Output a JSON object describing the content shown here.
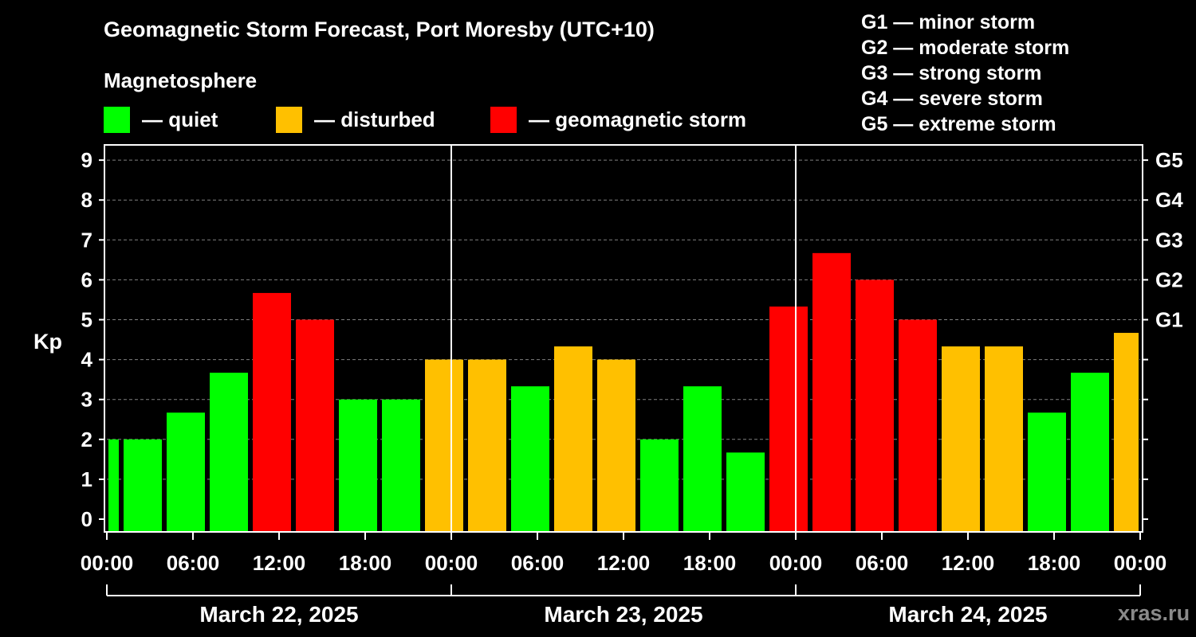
{
  "title": "Geomagnetic Storm Forecast, Port Moresby (UTC+10)",
  "legend": {
    "title": "Magnetosphere",
    "items": [
      {
        "label": "— quiet",
        "color": "#00ff00"
      },
      {
        "label": "— disturbed",
        "color": "#ffc000"
      },
      {
        "label": "— geomagnetic storm",
        "color": "#ff0000"
      }
    ]
  },
  "g_scale": [
    {
      "label": "G1 — minor storm"
    },
    {
      "label": "G2 — moderate storm"
    },
    {
      "label": "G3 — strong storm"
    },
    {
      "label": "G4 — severe storm"
    },
    {
      "label": "G5 — extreme storm"
    }
  ],
  "watermark": "xras.ru",
  "colors": {
    "quiet": "#00ff00",
    "disturbed": "#ffc000",
    "storm": "#ff0000",
    "background": "#000000",
    "axis": "#ffffff"
  },
  "chart_data": {
    "type": "bar",
    "ylabel": "Kp",
    "ylim": [
      0,
      9
    ],
    "yticks": [
      0,
      1,
      2,
      3,
      4,
      5,
      6,
      7,
      8,
      9
    ],
    "right_axis_labels": [
      {
        "value": 5,
        "label": "G1"
      },
      {
        "value": 6,
        "label": "G2"
      },
      {
        "value": 7,
        "label": "G3"
      },
      {
        "value": 8,
        "label": "G4"
      },
      {
        "value": 9,
        "label": "G5"
      }
    ],
    "xlim": [
      "2025-03-22 00:00",
      "2025-03-25 00:00"
    ],
    "xtick_labels": [
      "00:00",
      "06:00",
      "12:00",
      "18:00",
      "00:00",
      "06:00",
      "12:00",
      "18:00",
      "00:00",
      "06:00",
      "12:00",
      "18:00",
      "00:00"
    ],
    "days": [
      "March 22, 2025",
      "March 23, 2025",
      "March 24, 2025"
    ],
    "grid": "horizontal dashed",
    "bars": [
      {
        "start": "2025-03-22 00:00",
        "end": "2025-03-22 01:00",
        "kp": 2.0,
        "level": "quiet"
      },
      {
        "start": "2025-03-22 01:00",
        "end": "2025-03-22 04:00",
        "kp": 2.0,
        "level": "quiet"
      },
      {
        "start": "2025-03-22 04:00",
        "end": "2025-03-22 07:00",
        "kp": 2.67,
        "level": "quiet"
      },
      {
        "start": "2025-03-22 07:00",
        "end": "2025-03-22 10:00",
        "kp": 3.67,
        "level": "quiet"
      },
      {
        "start": "2025-03-22 10:00",
        "end": "2025-03-22 13:00",
        "kp": 5.67,
        "level": "storm"
      },
      {
        "start": "2025-03-22 13:00",
        "end": "2025-03-22 16:00",
        "kp": 5.0,
        "level": "storm"
      },
      {
        "start": "2025-03-22 16:00",
        "end": "2025-03-22 19:00",
        "kp": 3.0,
        "level": "quiet"
      },
      {
        "start": "2025-03-22 19:00",
        "end": "2025-03-22 22:00",
        "kp": 3.0,
        "level": "quiet"
      },
      {
        "start": "2025-03-22 22:00",
        "end": "2025-03-23 01:00",
        "kp": 4.0,
        "level": "disturbed"
      },
      {
        "start": "2025-03-23 01:00",
        "end": "2025-03-23 04:00",
        "kp": 4.0,
        "level": "disturbed"
      },
      {
        "start": "2025-03-23 04:00",
        "end": "2025-03-23 07:00",
        "kp": 3.33,
        "level": "quiet"
      },
      {
        "start": "2025-03-23 07:00",
        "end": "2025-03-23 10:00",
        "kp": 4.33,
        "level": "disturbed"
      },
      {
        "start": "2025-03-23 10:00",
        "end": "2025-03-23 13:00",
        "kp": 4.0,
        "level": "disturbed"
      },
      {
        "start": "2025-03-23 13:00",
        "end": "2025-03-23 16:00",
        "kp": 2.0,
        "level": "quiet"
      },
      {
        "start": "2025-03-23 16:00",
        "end": "2025-03-23 19:00",
        "kp": 3.33,
        "level": "quiet"
      },
      {
        "start": "2025-03-23 19:00",
        "end": "2025-03-23 22:00",
        "kp": 1.67,
        "level": "quiet"
      },
      {
        "start": "2025-03-23 22:00",
        "end": "2025-03-24 01:00",
        "kp": 5.33,
        "level": "storm"
      },
      {
        "start": "2025-03-24 01:00",
        "end": "2025-03-24 04:00",
        "kp": 6.67,
        "level": "storm"
      },
      {
        "start": "2025-03-24 04:00",
        "end": "2025-03-24 07:00",
        "kp": 6.0,
        "level": "storm"
      },
      {
        "start": "2025-03-24 07:00",
        "end": "2025-03-24 10:00",
        "kp": 5.0,
        "level": "storm"
      },
      {
        "start": "2025-03-24 10:00",
        "end": "2025-03-24 13:00",
        "kp": 4.33,
        "level": "disturbed"
      },
      {
        "start": "2025-03-24 13:00",
        "end": "2025-03-24 16:00",
        "kp": 4.33,
        "level": "disturbed"
      },
      {
        "start": "2025-03-24 16:00",
        "end": "2025-03-24 19:00",
        "kp": 2.67,
        "level": "quiet"
      },
      {
        "start": "2025-03-24 19:00",
        "end": "2025-03-24 22:00",
        "kp": 3.67,
        "level": "quiet"
      },
      {
        "start": "2025-03-24 22:00",
        "end": "2025-03-25 00:00",
        "kp": 4.67,
        "level": "disturbed"
      }
    ]
  }
}
